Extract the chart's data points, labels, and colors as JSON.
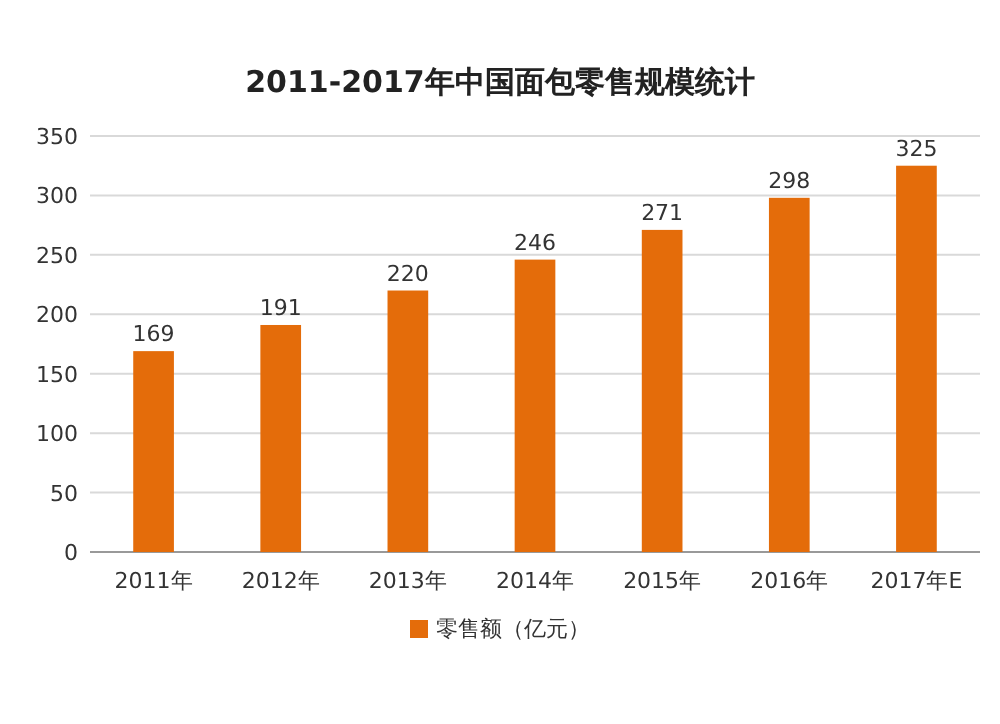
{
  "chart_data": {
    "type": "bar",
    "title": "2011-2017年中国面包零售规模统计",
    "categories": [
      "2011年",
      "2012年",
      "2013年",
      "2014年",
      "2015年",
      "2016年",
      "2017年E"
    ],
    "series": [
      {
        "name": "零售额（亿元）",
        "color": "#e46c0a",
        "values": [
          169,
          191,
          220,
          246,
          271,
          298,
          325
        ]
      }
    ],
    "ylim": [
      0,
      350
    ],
    "yticks": [
      0,
      50,
      100,
      150,
      200,
      250,
      300,
      350
    ],
    "grid": "y",
    "legend": "bottom",
    "data_labels": true
  }
}
